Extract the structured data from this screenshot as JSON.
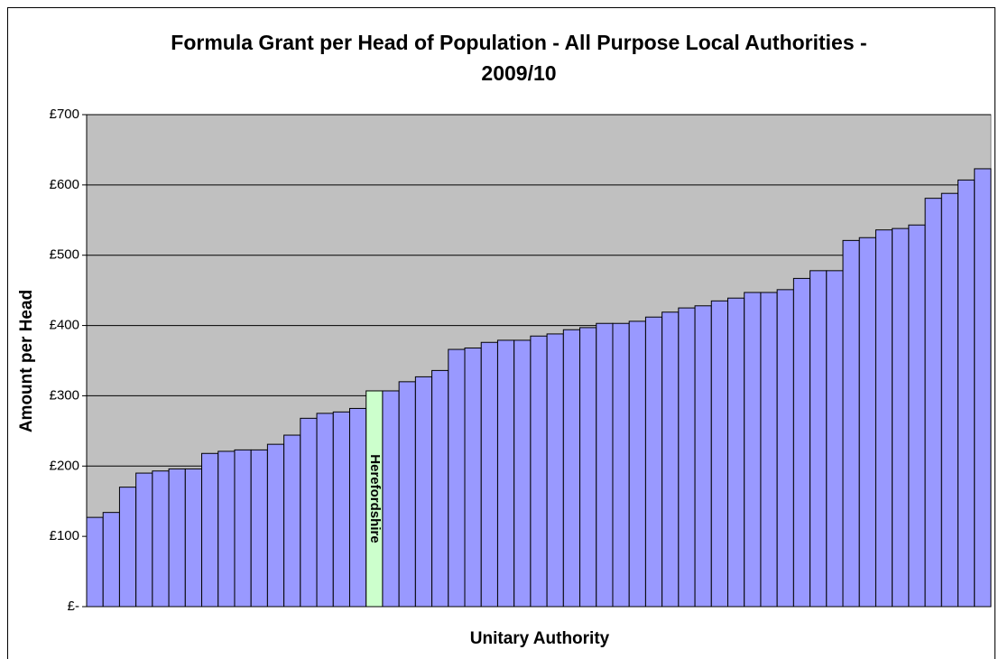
{
  "chart_data": {
    "type": "bar",
    "title": "Formula Grant per Head of Population - All Purpose Local Authorities - 2009/10",
    "x_label": "Unitary Authority",
    "y_label": "Amount per Head",
    "categories": [
      null,
      null,
      null,
      null,
      null,
      null,
      null,
      null,
      null,
      null,
      null,
      null,
      null,
      null,
      null,
      null,
      null,
      "Herefordshire",
      null,
      null,
      null,
      null,
      null,
      null,
      null,
      null,
      null,
      null,
      null,
      null,
      null,
      null,
      null,
      null,
      null,
      null,
      null,
      null,
      null,
      null,
      null,
      null,
      null,
      null,
      null,
      null,
      null,
      null,
      null,
      null,
      null,
      null,
      null,
      null,
      null
    ],
    "values": [
      127,
      134,
      170,
      190,
      193,
      196,
      196,
      218,
      221,
      223,
      223,
      231,
      244,
      268,
      275,
      277,
      282,
      307,
      307,
      320,
      327,
      336,
      366,
      368,
      376,
      379,
      379,
      385,
      388,
      394,
      397,
      403,
      403,
      406,
      412,
      419,
      425,
      428,
      435,
      439,
      447,
      447,
      451,
      467,
      478,
      478,
      521,
      525,
      536,
      538,
      543,
      581,
      588,
      607,
      623
    ],
    "color": "#9999ff",
    "highlight_color": "#ccffcc",
    "plot_background": "#c0c0c0",
    "ylim": [
      0,
      700
    ],
    "yticks": [
      {
        "value": 0,
        "label": "£-"
      },
      {
        "value": 100,
        "label": "£100"
      },
      {
        "value": 200,
        "label": "£200"
      },
      {
        "value": 300,
        "label": "£300"
      },
      {
        "value": 400,
        "label": "£400"
      },
      {
        "value": 500,
        "label": "£500"
      },
      {
        "value": 600,
        "label": "£600"
      },
      {
        "value": 700,
        "label": "£700"
      }
    ],
    "grid": true
  }
}
